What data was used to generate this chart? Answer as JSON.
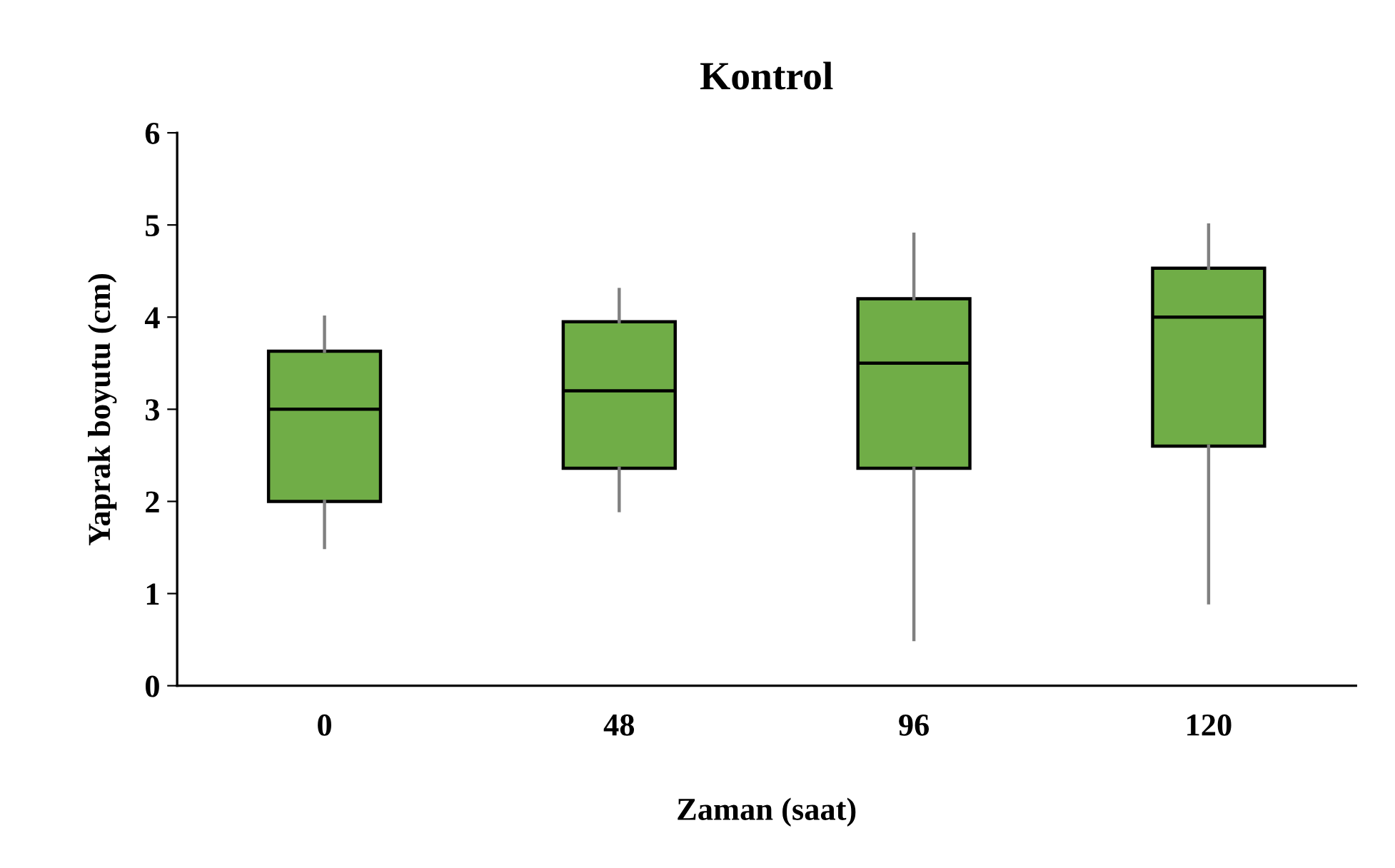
{
  "chart_data": {
    "type": "box",
    "title": "Kontrol",
    "xlabel": "Zaman (saat)",
    "ylabel": "Yaprak boyutu (cm)",
    "categories": [
      "0",
      "48",
      "96",
      "120"
    ],
    "color": "#70ad47",
    "boxes": [
      {
        "low": 1.5,
        "q1": 2.0,
        "median": 3.0,
        "q3": 3.63,
        "high": 4.0
      },
      {
        "low": 1.9,
        "q1": 2.36,
        "median": 3.2,
        "q3": 3.95,
        "high": 4.3
      },
      {
        "low": 0.5,
        "q1": 2.36,
        "median": 3.5,
        "q3": 4.2,
        "high": 4.9
      },
      {
        "low": 0.9,
        "q1": 2.6,
        "median": 4.0,
        "q3": 4.53,
        "high": 5.0
      }
    ],
    "ylim": [
      0,
      6
    ],
    "yticks": [
      0,
      1,
      2,
      3,
      4,
      5,
      6
    ],
    "grid": false,
    "legend": false
  }
}
